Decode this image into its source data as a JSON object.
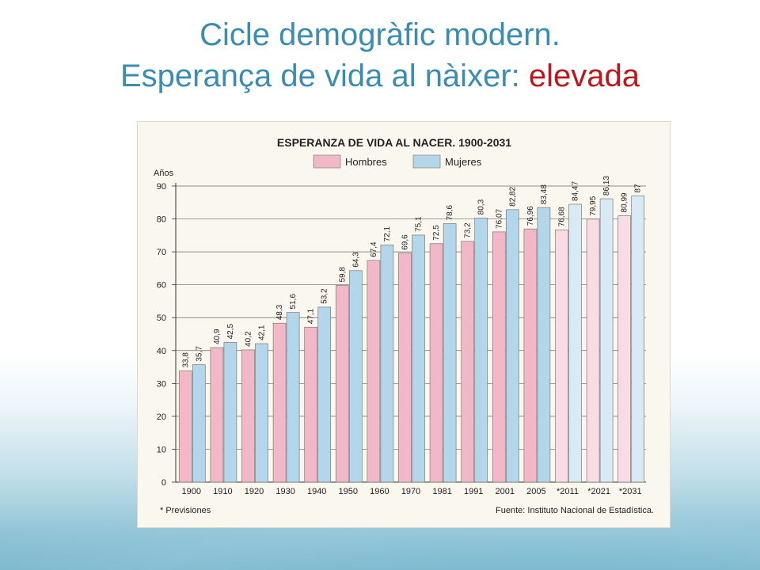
{
  "slide": {
    "title_line1": "Cicle demogràfic modern.",
    "title_line2_prefix": "Esperança de vida al nàixer: ",
    "title_line2_accent": "elevada"
  },
  "colors": {
    "title": "#3a8db0",
    "accent": "#c0161b",
    "hombres": "#f2b8c8",
    "mujeres": "#b4d6ea",
    "hombres_forecast": "#f8dbe3",
    "mujeres_forecast": "#d8eaf4"
  },
  "chart_data": {
    "type": "bar",
    "title": "ESPERANZA DE VIDA AL NACER. 1900-2031",
    "ylabel": "Años",
    "ylim": [
      0,
      90
    ],
    "yticks": [
      0,
      10,
      20,
      30,
      40,
      50,
      60,
      70,
      80,
      90
    ],
    "grid": true,
    "legend_position": "top",
    "categories": [
      "1900",
      "1910",
      "1920",
      "1930",
      "1940",
      "1950",
      "1960",
      "1970",
      "1981",
      "1991",
      "2001",
      "2005",
      "*2011",
      "*2021",
      "*2031"
    ],
    "series": [
      {
        "name": "Hombres",
        "values": [
          33.8,
          40.9,
          40.2,
          48.3,
          47.1,
          59.8,
          67.4,
          69.6,
          72.5,
          73.2,
          76.07,
          76.96,
          76.68,
          79.95,
          80.99
        ],
        "labels": [
          "33,8",
          "40,9",
          "40,2",
          "48,3",
          "47,1",
          "59,8",
          "67,4",
          "69,6",
          "72,5",
          "73,2",
          "76,07",
          "76,96",
          "76,68",
          "79,95",
          "80,99"
        ]
      },
      {
        "name": "Mujeres",
        "values": [
          35.7,
          42.5,
          42.1,
          51.6,
          53.2,
          64.3,
          72.1,
          75.1,
          78.6,
          80.3,
          82.82,
          83.48,
          84.47,
          86.13,
          87
        ],
        "labels": [
          "35,7",
          "42,5",
          "42,1",
          "51,6",
          "53,2",
          "64,3",
          "72,1",
          "75,1",
          "78,6",
          "80,3",
          "82,82",
          "83,48",
          "84,47",
          "86,13",
          "87"
        ]
      }
    ],
    "forecast_from_index": 12,
    "footnote": "* Previsiones",
    "source": "Fuente: Instituto Nacional de Estadística."
  }
}
